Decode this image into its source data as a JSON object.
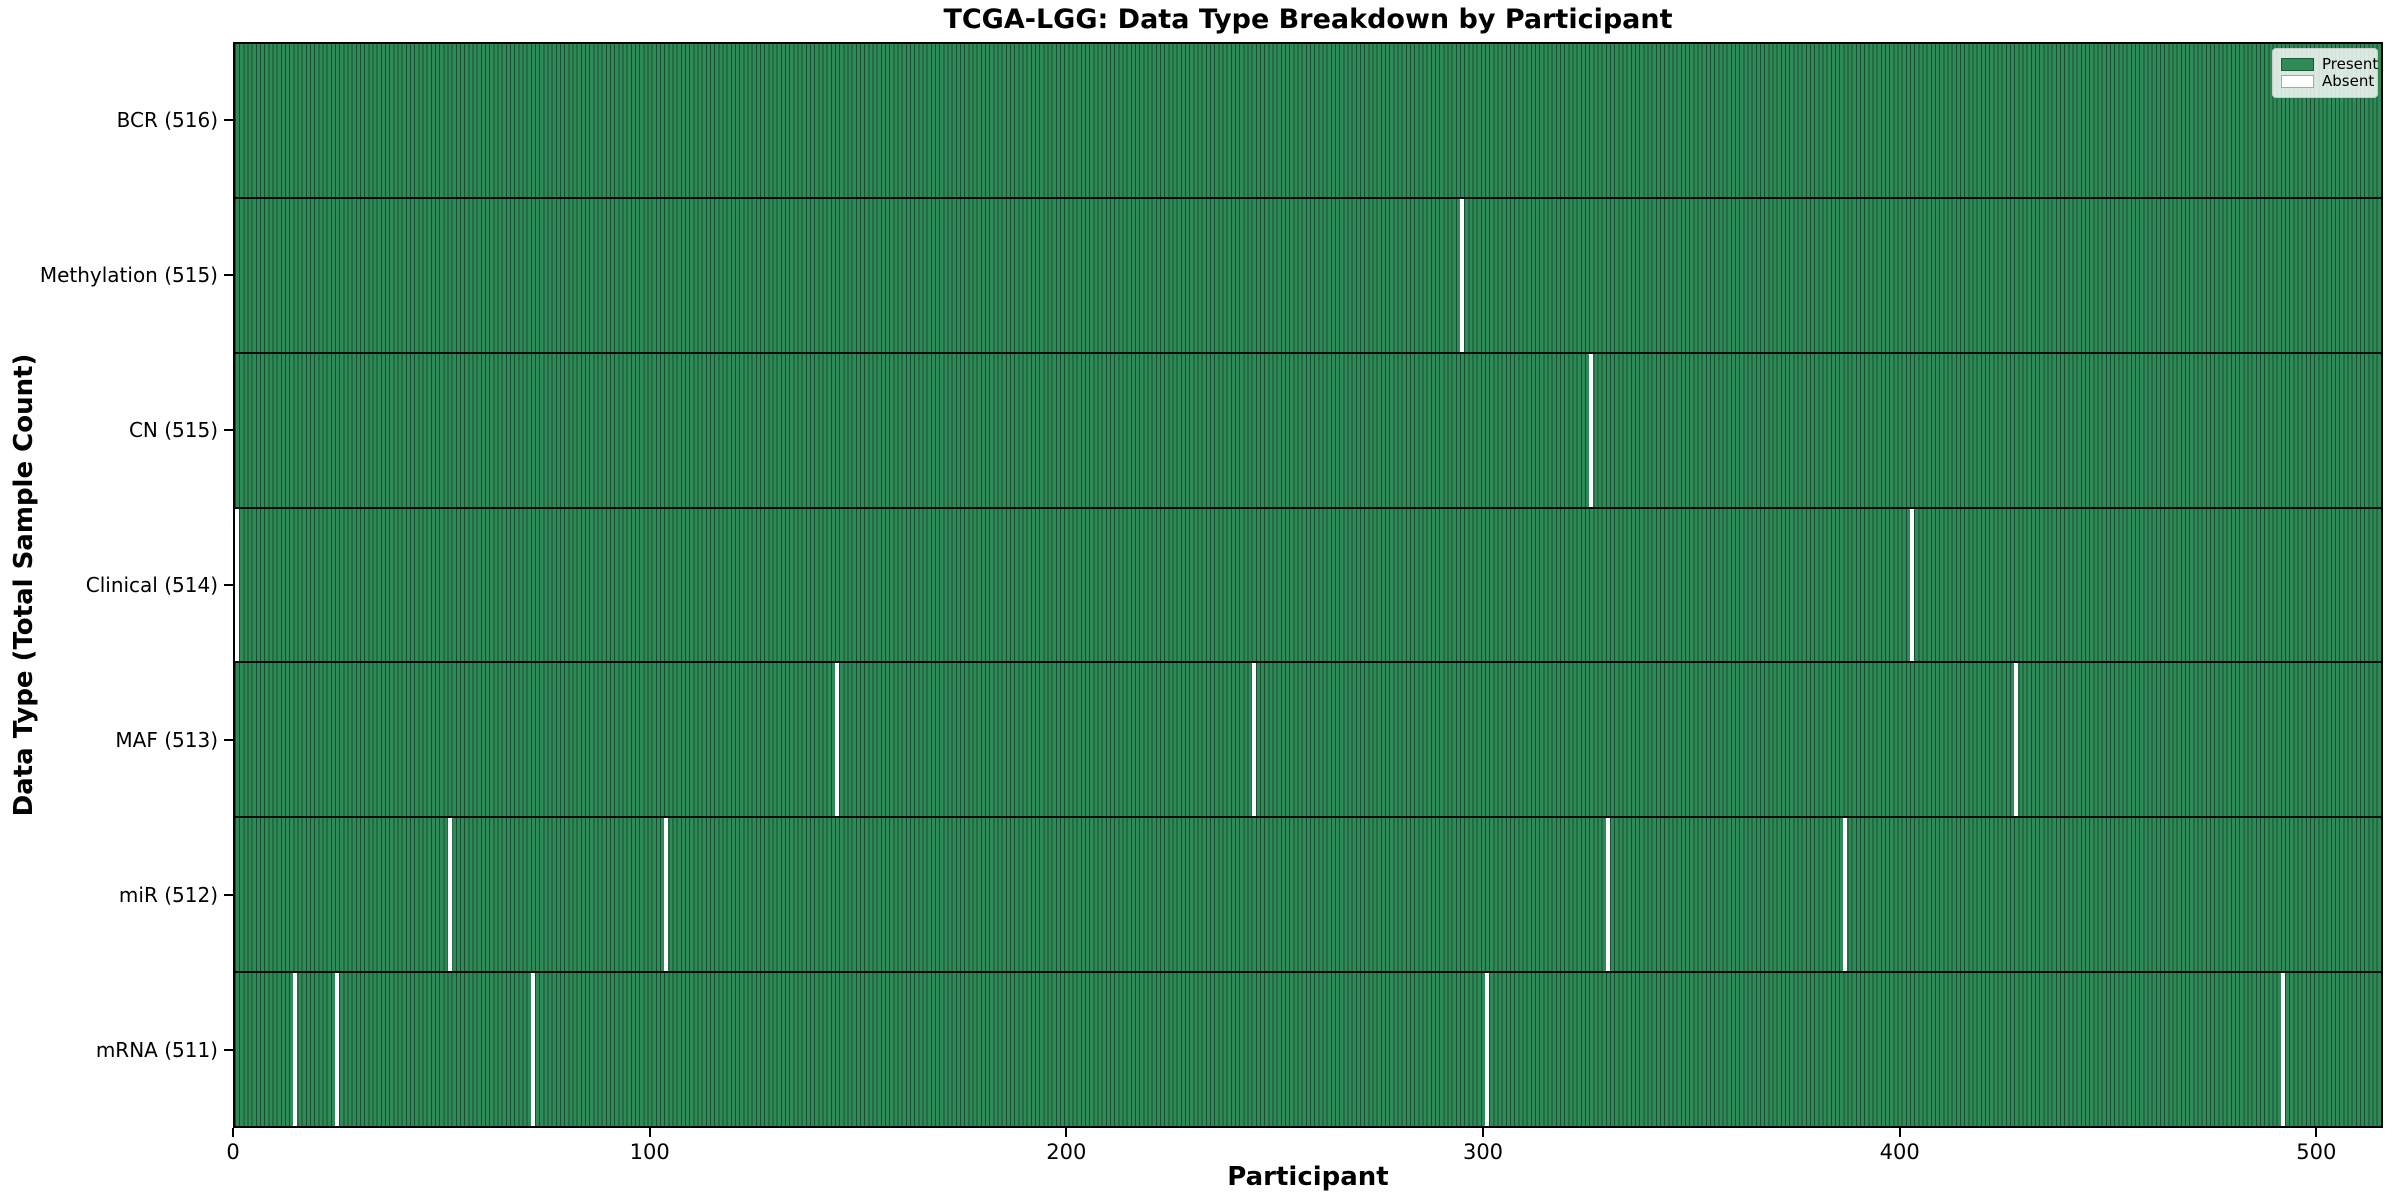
{
  "figure": {
    "title": "TCGA-LGG: Data Type Breakdown by Participant",
    "xlabel": "Participant",
    "ylabel": "Data Type (Total Sample Count)"
  },
  "legend": {
    "present_label": "Present",
    "absent_label": "Absent"
  },
  "colors": {
    "present": "#2e8b57",
    "absent": "#ffffff",
    "cell_edge": "rgba(0,0,0,0.45)",
    "axis": "#000000"
  },
  "chart_data": {
    "type": "heatmap",
    "title": "TCGA-LGG: Data Type Breakdown by Participant",
    "xlabel": "Participant",
    "ylabel": "Data Type (Total Sample Count)",
    "x_range": [
      0,
      516
    ],
    "x_ticks": [
      0,
      100,
      200,
      300,
      400,
      500
    ],
    "grid": false,
    "legend_position": "upper right",
    "legend_entries": [
      "Present",
      "Absent"
    ],
    "rows": [
      {
        "label": "BCR (516)",
        "data_type": "BCR",
        "total_samples": 516,
        "absent_participants": []
      },
      {
        "label": "Methylation (515)",
        "data_type": "Methylation",
        "total_samples": 515,
        "absent_participants": [
          294
        ]
      },
      {
        "label": "CN (515)",
        "data_type": "CN",
        "total_samples": 515,
        "absent_participants": [
          325
        ]
      },
      {
        "label": "Clinical (514)",
        "data_type": "Clinical",
        "total_samples": 514,
        "absent_participants": [
          0,
          402
        ]
      },
      {
        "label": "MAF (513)",
        "data_type": "MAF",
        "total_samples": 513,
        "absent_participants": [
          144,
          244,
          427
        ]
      },
      {
        "label": "miR (512)",
        "data_type": "miR",
        "total_samples": 512,
        "absent_participants": [
          51,
          103,
          329,
          386
        ]
      },
      {
        "label": "mRNA (511)",
        "data_type": "mRNA",
        "total_samples": 511,
        "absent_participants": [
          14,
          24,
          71,
          300,
          491
        ]
      }
    ]
  }
}
